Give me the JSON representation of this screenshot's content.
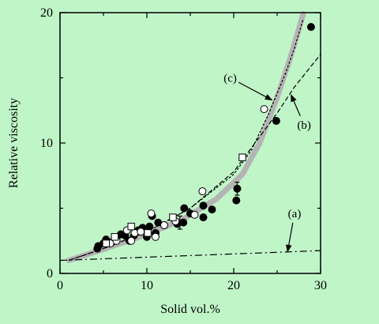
{
  "chart_data": {
    "type": "scatter",
    "title": "",
    "xlabel": "Solid vol.%",
    "ylabel": "Relative viscosity",
    "xlim": [
      0,
      30
    ],
    "ylim": [
      0,
      20
    ],
    "xticks": [
      "0",
      "10",
      "20",
      "30"
    ],
    "yticks": [
      "0",
      "10",
      "20"
    ],
    "colors": {
      "background": "#c0f5c8",
      "ink": "#000000",
      "band": "#b4b4b4",
      "open_marker_fill": "#ffffff"
    },
    "series": [
      {
        "marker": "filled-circle",
        "points": [
          [
            4.3,
            1.9
          ],
          [
            4.4,
            2.1
          ],
          [
            5.0,
            2.3
          ],
          [
            5.3,
            2.6
          ],
          [
            6.0,
            2.4
          ],
          [
            6.5,
            2.7
          ],
          [
            7.0,
            3.0
          ],
          [
            7.5,
            2.9
          ],
          [
            8.0,
            2.5
          ],
          [
            8.5,
            2.9
          ],
          [
            9.0,
            3.3
          ],
          [
            9.5,
            3.5
          ],
          [
            10.0,
            2.8
          ],
          [
            10.3,
            3.6
          ],
          [
            10.6,
            4.4
          ],
          [
            11.0,
            3.1
          ],
          [
            11.3,
            3.9
          ],
          [
            12.0,
            3.7
          ],
          [
            13.5,
            3.8
          ],
          [
            14.2,
            3.9
          ],
          [
            14.3,
            5.0
          ],
          [
            15.0,
            4.6
          ],
          [
            16.5,
            4.3
          ],
          [
            16.5,
            5.2
          ],
          [
            17.5,
            4.9
          ],
          [
            20.3,
            5.6
          ],
          [
            20.4,
            6.5
          ],
          [
            24.9,
            11.7
          ],
          [
            28.9,
            18.9
          ]
        ]
      },
      {
        "marker": "open-circle",
        "points": [
          [
            5.8,
            2.3
          ],
          [
            6.5,
            2.5
          ],
          [
            7.7,
            3.3
          ],
          [
            8.2,
            2.5
          ],
          [
            8.6,
            3.1
          ],
          [
            9.3,
            3.2
          ],
          [
            10.5,
            4.6
          ],
          [
            11.0,
            2.8
          ],
          [
            12.0,
            3.7
          ],
          [
            13.3,
            4.0
          ],
          [
            15.5,
            4.5
          ],
          [
            16.4,
            6.3
          ],
          [
            23.5,
            12.6
          ]
        ]
      },
      {
        "marker": "open-square",
        "points": [
          [
            5.3,
            2.3
          ],
          [
            6.3,
            2.8
          ],
          [
            8.2,
            3.6
          ],
          [
            10.1,
            3.1
          ],
          [
            13.0,
            4.3
          ],
          [
            21.0,
            8.9
          ]
        ]
      }
    ],
    "error_bars": [
      {
        "x": 13.8,
        "y": 3.9,
        "low": 3.4,
        "high": 4.4
      },
      {
        "x": 20.4,
        "y": 6.5,
        "low": 6.0,
        "high": 7.0
      }
    ],
    "curves": [
      {
        "label": "(a)",
        "style": "dash-dot",
        "points": [
          [
            0,
            1.0
          ],
          [
            5,
            1.12
          ],
          [
            10,
            1.25
          ],
          [
            15,
            1.37
          ],
          [
            20,
            1.5
          ],
          [
            25,
            1.62
          ],
          [
            30,
            1.75
          ]
        ],
        "label_position": [
          27,
          4.6
        ],
        "arrow_to": [
          26.2,
          1.67
        ]
      },
      {
        "label": "(b)",
        "style": "dashed",
        "points": [
          [
            1,
            1.0
          ],
          [
            5,
            1.9
          ],
          [
            10,
            3.2
          ],
          [
            15,
            5.0
          ],
          [
            20,
            7.8
          ],
          [
            22,
            9.6
          ],
          [
            25,
            12.3
          ],
          [
            27,
            14.3
          ],
          [
            30,
            16.8
          ]
        ],
        "label_position": [
          28.1,
          11.4
        ],
        "arrow_to": [
          26.6,
          13.7
        ]
      },
      {
        "label": "(c)",
        "style": "dotted",
        "points": [
          [
            1,
            1.0
          ],
          [
            5,
            1.9
          ],
          [
            10,
            3.2
          ],
          [
            15,
            5.0
          ],
          [
            20,
            7.6
          ],
          [
            22,
            9.4
          ],
          [
            24,
            12.2
          ],
          [
            26,
            15.4
          ],
          [
            27,
            17.3
          ],
          [
            28,
            19.5
          ]
        ],
        "label_position": [
          19.6,
          15.0
        ],
        "arrow_to": [
          24.4,
          13.3
        ]
      }
    ],
    "band": {
      "style": "thick-gray",
      "points": [
        [
          1,
          1.0
        ],
        [
          5,
          1.85
        ],
        [
          10,
          3.0
        ],
        [
          14,
          4.1
        ],
        [
          18,
          5.7
        ],
        [
          21,
          7.6
        ],
        [
          23,
          10.0
        ],
        [
          25,
          13.5
        ],
        [
          26.5,
          16.5
        ],
        [
          28,
          19.9
        ]
      ]
    }
  }
}
